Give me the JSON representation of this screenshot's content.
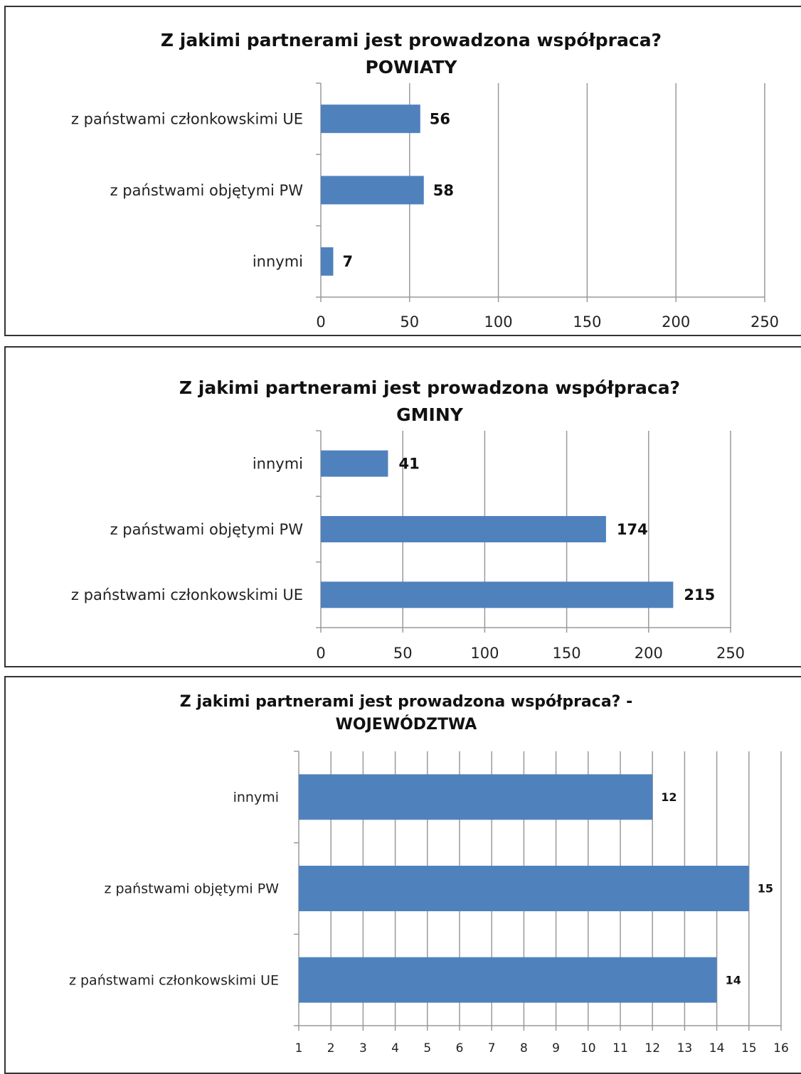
{
  "colors": {
    "bar": "#4f81bd",
    "grid": "#9a9a9a",
    "text": "#111111"
  },
  "chart_data": [
    {
      "type": "bar",
      "orientation": "horizontal",
      "title": "Z jakimi partnerami jest prowadzona współpraca?",
      "subtitle": "POWIATY",
      "categories": [
        "z państwami członkowskimi UE",
        "z państwami objętymi PW",
        "innymi"
      ],
      "values": [
        56,
        58,
        7
      ],
      "data_labels": [
        "56",
        "58",
        "7"
      ],
      "xlim": [
        0,
        250
      ],
      "ticks": [
        0,
        50,
        100,
        150,
        200,
        250
      ],
      "tick_labels": [
        "0",
        "50",
        "100",
        "150",
        "200",
        "250"
      ],
      "grid": true,
      "legend": "none"
    },
    {
      "type": "bar",
      "orientation": "horizontal",
      "title": "Z  jakimi partnerami jest prowadzona  współpraca?",
      "subtitle": "GMINY",
      "categories": [
        "innymi",
        "z państwami objętymi PW",
        "z państwami członkowskimi UE"
      ],
      "values": [
        41,
        174,
        215
      ],
      "data_labels": [
        "41",
        "174",
        "215"
      ],
      "xlim": [
        0,
        250
      ],
      "ticks": [
        0,
        50,
        100,
        150,
        200,
        250
      ],
      "tick_labels": [
        "0",
        "50",
        "100",
        "150",
        "200",
        "250"
      ],
      "grid": true,
      "legend": "none"
    },
    {
      "type": "bar",
      "orientation": "horizontal",
      "title": "Z  jakimi partnerami jest prowadzona współpraca? -",
      "subtitle": "WOJEWÓDZTWA",
      "categories": [
        "innymi",
        "z państwami objętymi PW",
        "z państwami członkowskimi UE"
      ],
      "values": [
        12,
        15,
        14
      ],
      "data_labels": [
        "12",
        "15",
        "14"
      ],
      "xlim": [
        1,
        16
      ],
      "ticks": [
        1,
        2,
        3,
        4,
        5,
        6,
        7,
        8,
        9,
        10,
        11,
        12,
        13,
        14,
        15,
        16
      ],
      "tick_labels": [
        "1",
        "2",
        "3",
        "4",
        "5",
        "6",
        "7",
        "8",
        "9",
        "10",
        "11",
        "12",
        "13",
        "14",
        "15",
        "16"
      ],
      "grid": true,
      "legend": "none"
    }
  ]
}
